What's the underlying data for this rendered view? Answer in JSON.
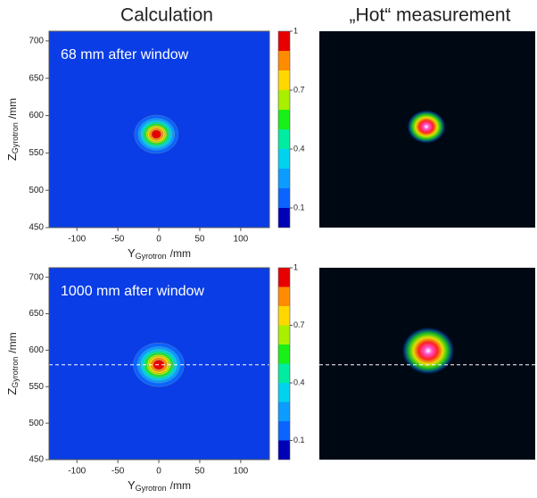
{
  "column_titles": [
    "Calculation",
    "„Hot“ measurement"
  ],
  "chart_data": [
    {
      "type": "contour",
      "annotation": "68 mm after window",
      "x_label": {
        "symbol": "Y",
        "subscript": "Gyrotron",
        "unit": "/mm"
      },
      "y_label": {
        "symbol": "Z",
        "subscript": "Gyrotron",
        "unit": "/mm"
      },
      "xlim": [
        -134,
        135
      ],
      "xticks": [
        -100,
        -50,
        0,
        50,
        100
      ],
      "ylim": [
        450,
        713
      ],
      "yticks": [
        450,
        500,
        550,
        600,
        650,
        700
      ],
      "beam": {
        "center": [
          -3,
          575
        ],
        "sigma": [
          12.5,
          12
        ]
      },
      "levels": [
        0.1,
        0.2,
        0.3,
        0.4,
        0.5,
        0.6,
        0.7,
        0.8,
        0.9
      ],
      "colorbar": {
        "lim": [
          0,
          1
        ],
        "ticks": [
          0.1,
          0.4,
          0.7,
          1
        ],
        "colors": [
          "#0a3de6",
          "#0a64ff",
          "#0a9cff",
          "#00d2f0",
          "#00eca0",
          "#18f018",
          "#a8f000",
          "#ffd800",
          "#ff8c00",
          "#e80000"
        ]
      }
    },
    {
      "type": "contour",
      "annotation": "1000 mm after window",
      "x_label": {
        "symbol": "Y",
        "subscript": "Gyrotron",
        "unit": "/mm"
      },
      "y_label": {
        "symbol": "Z",
        "subscript": "Gyrotron",
        "unit": "/mm"
      },
      "xlim": [
        -134,
        135
      ],
      "xticks": [
        -100,
        -50,
        0,
        50,
        100
      ],
      "ylim": [
        450,
        713
      ],
      "yticks": [
        450,
        500,
        550,
        600,
        650,
        700
      ],
      "beam": {
        "center": [
          0,
          580
        ],
        "sigma": [
          14.5,
          14
        ]
      },
      "levels": [
        0.1,
        0.2,
        0.3,
        0.4,
        0.5,
        0.6,
        0.7,
        0.8,
        0.9
      ],
      "reference_line": 580,
      "colorbar": {
        "lim": [
          0,
          1
        ],
        "ticks": [
          0.1,
          0.4,
          0.7,
          1
        ],
        "colors": [
          "#0a3de6",
          "#0a64ff",
          "#0a9cff",
          "#00d2f0",
          "#00eca0",
          "#18f018",
          "#a8f000",
          "#ffd800",
          "#ff8c00",
          "#e80000"
        ]
      }
    }
  ]
}
